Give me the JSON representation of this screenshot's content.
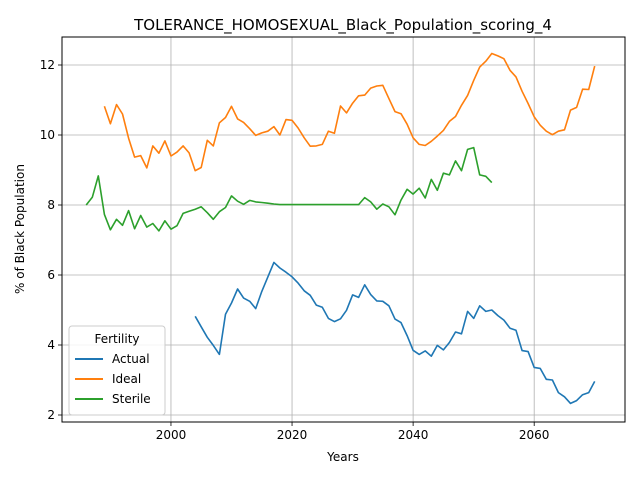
{
  "chart_data": {
    "type": "line",
    "title": "TOLERANCE_HOMOSEXUAL_Black_Population_scoring_4",
    "xlabel": "Years",
    "ylabel": "% of Black Population",
    "xlim": [
      1982,
      2075
    ],
    "ylim": [
      1.8,
      12.8
    ],
    "xticks": [
      2000,
      2020,
      2040,
      2060
    ],
    "yticks": [
      2,
      4,
      6,
      8,
      10,
      12
    ],
    "grid": true,
    "legend": {
      "title": "Fertility",
      "location": "lower-left"
    },
    "series": [
      {
        "name": "Actual",
        "color": "#1f77b4",
        "x": [
          2004,
          2005,
          2006,
          2007,
          2008,
          2009,
          2010,
          2011,
          2012,
          2013,
          2014,
          2015,
          2016,
          2017,
          2018,
          2019,
          2020,
          2021,
          2022,
          2023,
          2024,
          2025,
          2026,
          2027,
          2028,
          2029,
          2030,
          2031,
          2032,
          2033,
          2034,
          2035,
          2036,
          2037,
          2038,
          2039,
          2040,
          2041,
          2042,
          2043,
          2044,
          2045,
          2046,
          2047,
          2048,
          2049,
          2050,
          2051,
          2052,
          2053,
          2054,
          2055,
          2056,
          2057,
          2058,
          2059,
          2060,
          2061,
          2062,
          2063,
          2064,
          2065,
          2066,
          2067,
          2068,
          2069,
          2070
        ],
        "y": [
          4.82,
          4.52,
          4.22,
          3.99,
          3.73,
          4.88,
          5.2,
          5.6,
          5.34,
          5.25,
          5.04,
          5.53,
          5.94,
          6.36,
          6.2,
          6.08,
          5.95,
          5.77,
          5.55,
          5.42,
          5.14,
          5.08,
          4.76,
          4.67,
          4.75,
          4.99,
          5.43,
          5.36,
          5.72,
          5.44,
          5.26,
          5.25,
          5.12,
          4.74,
          4.64,
          4.27,
          3.85,
          3.73,
          3.83,
          3.68,
          3.99,
          3.86,
          4.07,
          4.37,
          4.32,
          4.96,
          4.76,
          5.12,
          4.96,
          5.0,
          4.84,
          4.71,
          4.48,
          4.42,
          3.84,
          3.81,
          3.36,
          3.33,
          3.02,
          3.0,
          2.64,
          2.52,
          2.33,
          2.41,
          2.58,
          2.64,
          2.96
        ]
      },
      {
        "name": "Ideal",
        "color": "#ff7f0e",
        "x": [
          1989,
          1990,
          1991,
          1992,
          1993,
          1994,
          1995,
          1996,
          1997,
          1998,
          1999,
          2000,
          2001,
          2002,
          2003,
          2004,
          2005,
          2006,
          2007,
          2008,
          2009,
          2010,
          2011,
          2012,
          2013,
          2014,
          2015,
          2016,
          2017,
          2018,
          2019,
          2020,
          2021,
          2022,
          2023,
          2024,
          2025,
          2026,
          2027,
          2028,
          2029,
          2030,
          2031,
          2032,
          2033,
          2034,
          2035,
          2036,
          2037,
          2038,
          2039,
          2040,
          2041,
          2042,
          2043,
          2044,
          2045,
          2046,
          2047,
          2048,
          2049,
          2050,
          2051,
          2052,
          2053,
          2054,
          2055,
          2056,
          2057,
          2058,
          2059,
          2060,
          2061,
          2062,
          2063,
          2064,
          2065,
          2066,
          2067,
          2068,
          2069,
          2070
        ],
        "y": [
          10.82,
          10.32,
          10.87,
          10.6,
          9.91,
          9.37,
          9.41,
          9.06,
          9.69,
          9.48,
          9.83,
          9.4,
          9.51,
          9.69,
          9.49,
          8.98,
          9.07,
          9.85,
          9.69,
          10.35,
          10.5,
          10.82,
          10.46,
          10.36,
          10.18,
          9.99,
          10.06,
          10.11,
          10.24,
          10.0,
          10.44,
          10.42,
          10.2,
          9.92,
          9.68,
          9.69,
          9.73,
          10.11,
          10.05,
          10.83,
          10.63,
          10.91,
          11.12,
          11.14,
          11.34,
          11.4,
          11.42,
          11.04,
          10.67,
          10.61,
          10.31,
          9.92,
          9.73,
          9.7,
          9.82,
          9.97,
          10.13,
          10.39,
          10.53,
          10.85,
          11.13,
          11.56,
          11.94,
          12.11,
          12.33,
          12.26,
          12.18,
          11.85,
          11.66,
          11.25,
          10.9,
          10.52,
          10.28,
          10.11,
          10.01,
          10.11,
          10.15,
          10.71,
          10.79,
          11.31,
          11.3,
          11.97
        ]
      },
      {
        "name": "Sterile",
        "color": "#2ca02c",
        "x": [
          1986,
          1987,
          1988,
          1989,
          1990,
          1991,
          1992,
          1993,
          1994,
          1995,
          1996,
          1997,
          1998,
          1999,
          2000,
          2001,
          2002,
          2003,
          2004,
          2005,
          2006,
          2007,
          2008,
          2009,
          2010,
          2011,
          2012,
          2013,
          2014,
          2015,
          2016,
          2017,
          2018,
          2019,
          2020,
          2021,
          2022,
          2023,
          2024,
          2025,
          2026,
          2027,
          2028,
          2029,
          2030,
          2031,
          2032,
          2033,
          2034,
          2035,
          2036,
          2037,
          2038,
          2039,
          2040,
          2041,
          2042,
          2043,
          2044,
          2045,
          2046,
          2047,
          2048,
          2049,
          2050,
          2051,
          2052,
          2053
        ],
        "y": [
          8.0,
          8.22,
          8.83,
          7.73,
          7.29,
          7.59,
          7.42,
          7.84,
          7.32,
          7.7,
          7.37,
          7.47,
          7.26,
          7.55,
          7.31,
          7.41,
          7.76,
          7.82,
          7.88,
          7.95,
          7.78,
          7.59,
          7.81,
          7.93,
          8.26,
          8.11,
          8.02,
          8.13,
          8.09,
          8.07,
          8.05,
          8.03,
          8.01,
          8.01,
          8.01,
          8.01,
          8.01,
          8.01,
          8.01,
          8.01,
          8.01,
          8.01,
          8.01,
          8.01,
          8.01,
          8.01,
          8.21,
          8.09,
          7.88,
          8.03,
          7.95,
          7.72,
          8.14,
          8.45,
          8.31,
          8.48,
          8.2,
          8.73,
          8.42,
          8.91,
          8.86,
          9.26,
          8.98,
          9.59,
          9.64,
          8.86,
          8.82,
          8.64
        ]
      }
    ]
  }
}
